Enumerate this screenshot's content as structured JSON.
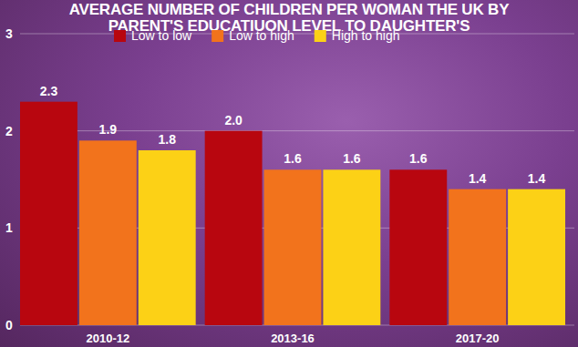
{
  "chart_data": {
    "type": "bar",
    "title": "AVERAGE NUMBER OF CHILDREN PER WOMAN THE UK BY PARENT'S EDUCATIUON LEVEL TO DAUGHTER'S",
    "categories": [
      "2010-12",
      "2013-16",
      "2017-20"
    ],
    "series": [
      {
        "name": "Low to low",
        "color": "#b8060f",
        "values": [
          2.3,
          2.0,
          1.6
        ],
        "value_labels": [
          "2.3",
          "2.0",
          "1.6"
        ]
      },
      {
        "name": "Low to high",
        "color": "#f2731c",
        "values": [
          1.9,
          1.6,
          1.4
        ]
      },
      {
        "name": "High to high",
        "color": "#fcd116",
        "values": [
          1.8,
          1.6,
          1.4
        ]
      }
    ],
    "ylim": [
      0,
      3
    ],
    "yticks": [
      0,
      1,
      2,
      3
    ],
    "grid": true,
    "data_labels": true,
    "legend": "top"
  }
}
